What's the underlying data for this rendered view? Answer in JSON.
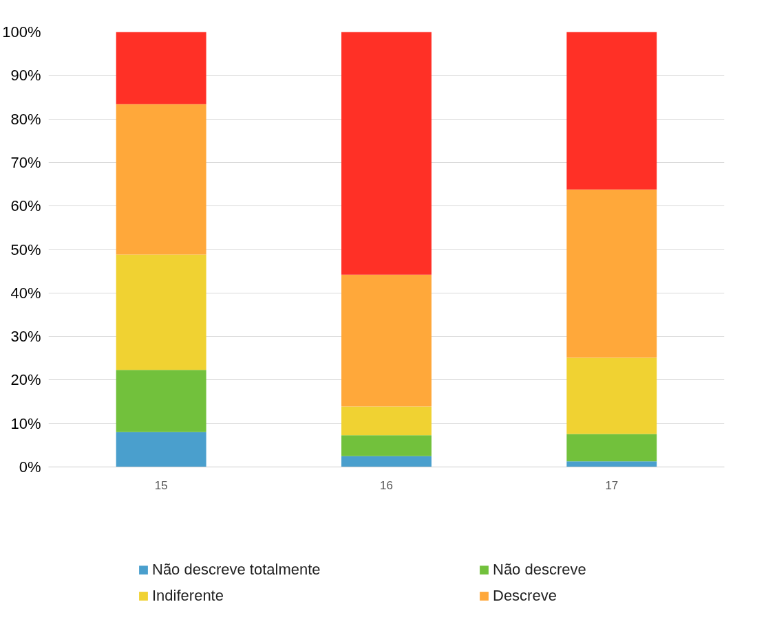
{
  "chart_data": {
    "type": "bar",
    "stacked": true,
    "categories": [
      "15",
      "16",
      "17"
    ],
    "series": [
      {
        "name": "Não descreve totalmente",
        "color": "#4a9fcd",
        "values": [
          8.0,
          2.5,
          1.3
        ]
      },
      {
        "name": "Não descreve",
        "color": "#72c13c",
        "values": [
          14.3,
          4.8,
          6.3
        ]
      },
      {
        "name": "Indiferente",
        "color": "#f0d232",
        "values": [
          26.5,
          6.6,
          17.5
        ]
      },
      {
        "name": "Descreve",
        "color": "#ffa83a",
        "values": [
          34.6,
          30.3,
          38.7
        ]
      },
      {
        "color": "#ff3026",
        "values": [
          16.6,
          55.8,
          36.2
        ]
      }
    ],
    "ylim": [
      0,
      100
    ],
    "yticks": [
      {
        "value": 0,
        "label": "0%"
      },
      {
        "value": 10,
        "label": "10%"
      },
      {
        "value": 20,
        "label": "20%"
      },
      {
        "value": 30,
        "label": "30%"
      },
      {
        "value": 40,
        "label": "40%"
      },
      {
        "value": 50,
        "label": "50%"
      },
      {
        "value": 60,
        "label": "60%"
      },
      {
        "value": 70,
        "label": "70%"
      },
      {
        "value": 80,
        "label": "80%"
      },
      {
        "value": 90,
        "label": "90%"
      },
      {
        "value": 100,
        "label": "100%"
      }
    ],
    "grid": "y",
    "legend": "bottom"
  }
}
